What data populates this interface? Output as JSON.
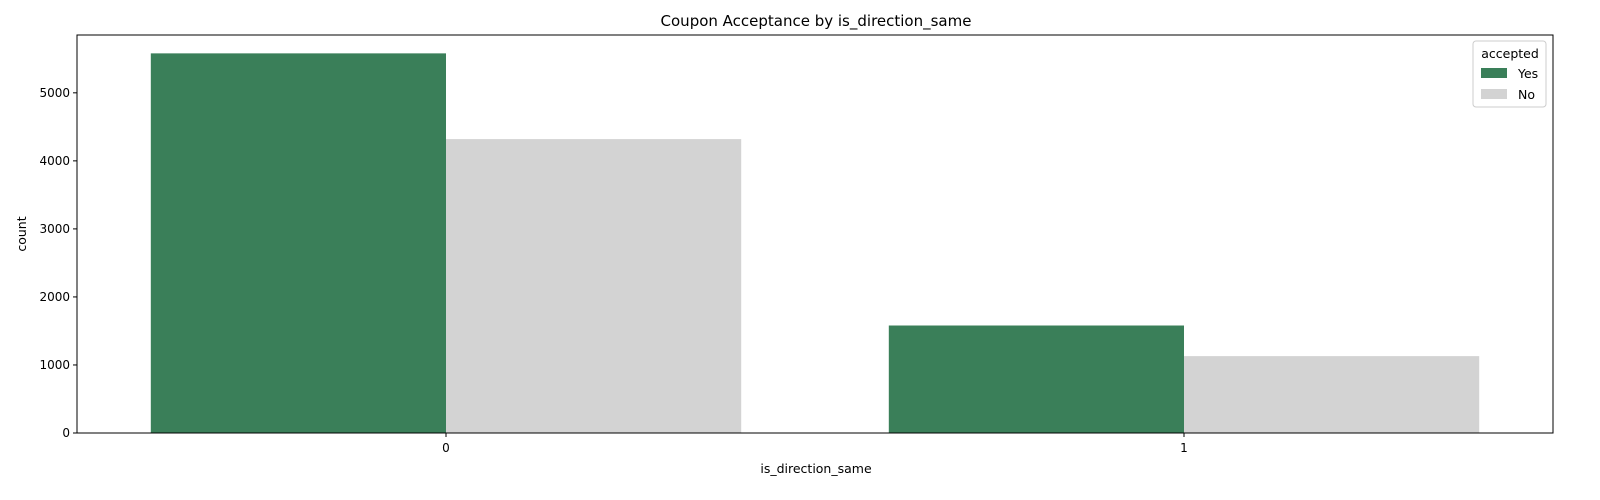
{
  "chart_data": {
    "type": "bar",
    "title": "Coupon Acceptance by is_direction_same",
    "xlabel": "is_direction_same",
    "ylabel": "count",
    "categories": [
      "0",
      "1"
    ],
    "series": [
      {
        "name": "Yes",
        "color": "#3a7f59",
        "values": [
          5580,
          1580
        ]
      },
      {
        "name": "No",
        "color": "#d3d3d3",
        "values": [
          4320,
          1130
        ]
      }
    ],
    "ylim": [
      0,
      5850
    ],
    "yticks": [
      0,
      1000,
      2000,
      3000,
      4000,
      5000
    ],
    "grid": false,
    "legend": {
      "title": "accepted",
      "placement": "top-right"
    }
  }
}
